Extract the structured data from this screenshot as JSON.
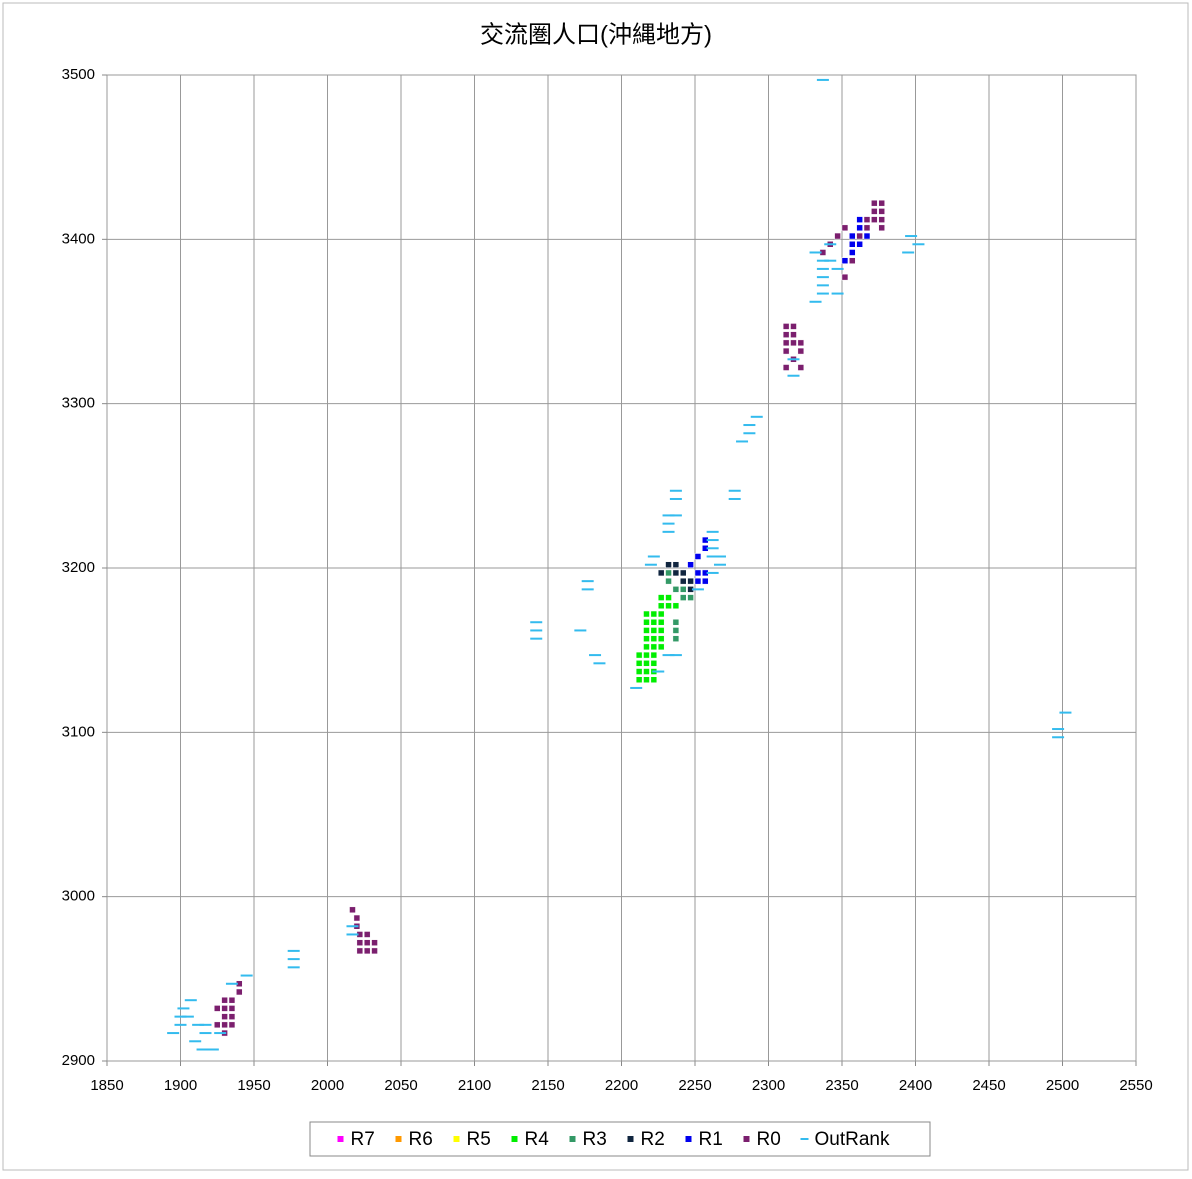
{
  "chart_data": {
    "type": "scatter",
    "title": "交流圏人口(沖縄地方)",
    "xlim": [
      1850,
      2550
    ],
    "xticks": [
      1850,
      1900,
      1950,
      2000,
      2050,
      2100,
      2150,
      2200,
      2250,
      2300,
      2350,
      2400,
      2450,
      2500,
      2550
    ],
    "ylim": [
      2900,
      3500
    ],
    "yticks": [
      2900,
      3000,
      3100,
      3200,
      3300,
      3400,
      3500
    ],
    "grid": true,
    "legend": "bottom",
    "series": [
      {
        "name": "R7",
        "color": "#ff00ff",
        "marker": "square",
        "x": [],
        "y": []
      },
      {
        "name": "R6",
        "color": "#ff9900",
        "marker": "square",
        "x": [],
        "y": []
      },
      {
        "name": "R5",
        "color": "#ffff00",
        "marker": "square",
        "x": [],
        "y": []
      },
      {
        "name": "R4",
        "color": "#00ee00",
        "marker": "square",
        "x": [
          2212,
          2212,
          2212,
          2212,
          2217,
          2217,
          2217,
          2217,
          2222,
          2222,
          2222,
          2222,
          2217,
          2217,
          2217,
          2217,
          2217,
          2222,
          2222,
          2222,
          2222,
          2222,
          2227,
          2227,
          2227,
          2227,
          2227,
          2227,
          2227,
          2232,
          2232,
          2237
        ],
        "y": [
          3132,
          3137,
          3142,
          3147,
          3132,
          3137,
          3142,
          3147,
          3132,
          3137,
          3142,
          3147,
          3152,
          3157,
          3162,
          3167,
          3172,
          3152,
          3157,
          3162,
          3167,
          3172,
          3152,
          3157,
          3162,
          3167,
          3172,
          3177,
          3182,
          3177,
          3182,
          3177
        ]
      },
      {
        "name": "R3",
        "color": "#339966",
        "marker": "square",
        "x": [
          2232,
          2237,
          2242,
          2247,
          2237,
          2237,
          2237,
          2232,
          2242
        ],
        "y": [
          3192,
          3187,
          3187,
          3182,
          3167,
          3162,
          3157,
          3197,
          3182
        ]
      },
      {
        "name": "R2",
        "color": "#10253f",
        "marker": "square",
        "x": [
          2232,
          2237,
          2227,
          2237,
          2242,
          2247,
          2242,
          2247
        ],
        "y": [
          3202,
          3202,
          3197,
          3197,
          3192,
          3192,
          3197,
          3187
        ]
      },
      {
        "name": "R1",
        "color": "#0000ee",
        "marker": "square",
        "x": [
          2357,
          2357,
          2352,
          2362,
          2362,
          2367,
          2362,
          2357,
          2257,
          2257,
          2252,
          2252,
          2257,
          2257,
          2247,
          2252
        ],
        "y": [
          3392,
          3397,
          3387,
          3397,
          3407,
          3402,
          3412,
          3402,
          3217,
          3212,
          3207,
          3192,
          3192,
          3197,
          3202,
          3197
        ]
      },
      {
        "name": "R0",
        "color": "#7b1f6e",
        "marker": "square",
        "x": [
          1925,
          1925,
          1930,
          1930,
          1930,
          1930,
          1930,
          1935,
          1935,
          1935,
          1935,
          1940,
          1940,
          2017,
          2020,
          2020,
          2022,
          2022,
          2022,
          2027,
          2027,
          2027,
          2032,
          2032,
          2312,
          2312,
          2312,
          2312,
          2317,
          2317,
          2317,
          2312,
          2317,
          2322,
          2322,
          2322,
          2337,
          2342,
          2347,
          2352,
          2352,
          2357,
          2362,
          2367,
          2367,
          2372,
          2372,
          2372,
          2377,
          2377,
          2377,
          2377
        ],
        "y": [
          2922,
          2932,
          2917,
          2922,
          2927,
          2932,
          2937,
          2922,
          2927,
          2932,
          2937,
          2942,
          2947,
          2992,
          2987,
          2982,
          2977,
          2972,
          2967,
          2977,
          2972,
          2967,
          2972,
          2967,
          3347,
          3342,
          3337,
          3332,
          3347,
          3342,
          3337,
          3322,
          3327,
          3337,
          3332,
          3322,
          3392,
          3397,
          3402,
          3407,
          3377,
          3387,
          3402,
          3407,
          3412,
          3412,
          3417,
          3422,
          3407,
          3412,
          3417,
          3422
        ]
      },
      {
        "name": "OutRank",
        "color": "#33bbee",
        "marker": "dash",
        "x": [
          1895,
          1900,
          1900,
          1905,
          1902,
          1907,
          1910,
          1912,
          1917,
          1917,
          1915,
          1922,
          1927,
          1935,
          1945,
          1977,
          1977,
          1977,
          2017,
          2017,
          2142,
          2142,
          2142,
          2177,
          2177,
          2172,
          2182,
          2185,
          2210,
          2225,
          2232,
          2237,
          2222,
          2220,
          2237,
          2237,
          2232,
          2237,
          2232,
          2232,
          2262,
          2262,
          2262,
          2267,
          2262,
          2267,
          2262,
          2252,
          2277,
          2277,
          2287,
          2287,
          2282,
          2292,
          2317,
          2317,
          2332,
          2337,
          2337,
          2337,
          2337,
          2342,
          2337,
          2332,
          2342,
          2347,
          2347,
          2337,
          2397,
          2402,
          2395,
          2497,
          2497,
          2502
        ],
        "y": [
          2917,
          2922,
          2927,
          2927,
          2932,
          2937,
          2912,
          2922,
          2917,
          2922,
          2907,
          2907,
          2917,
          2947,
          2952,
          2967,
          2962,
          2957,
          2982,
          2977,
          3167,
          3162,
          3157,
          3192,
          3187,
          3162,
          3147,
          3142,
          3127,
          3137,
          3147,
          3147,
          3207,
          3202,
          3247,
          3242,
          3232,
          3232,
          3227,
          3222,
          3222,
          3217,
          3212,
          3207,
          3207,
          3202,
          3197,
          3187,
          3247,
          3242,
          3287,
          3282,
          3277,
          3292,
          3327,
          3317,
          3362,
          3367,
          3372,
          3377,
          3382,
          3387,
          3387,
          3392,
          3397,
          3367,
          3382,
          3497,
          3402,
          3397,
          3392,
          3097,
          3102,
          3112
        ]
      }
    ]
  }
}
